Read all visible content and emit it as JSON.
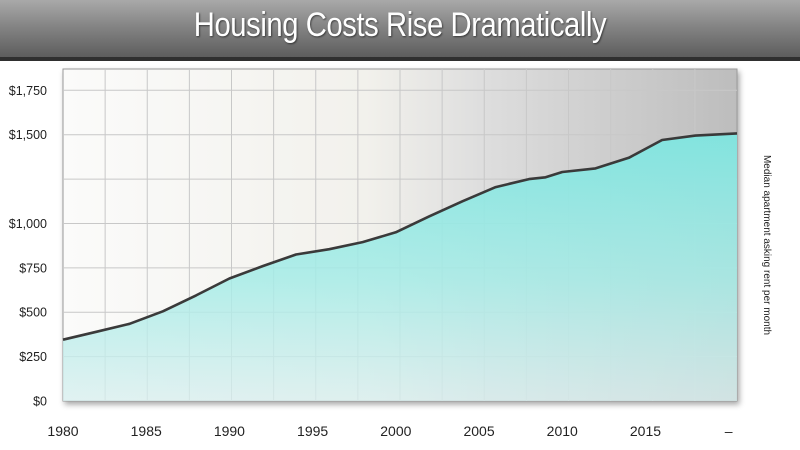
{
  "title": "Housing Costs Rise Dramatically",
  "chart_data": {
    "type": "area",
    "title": "Housing Costs Rise Dramatically",
    "ylabel": "Median apartment asking rent per month",
    "xlabel": "",
    "x": [
      1980,
      1982,
      1984,
      1986,
      1988,
      1990,
      1992,
      1994,
      1996,
      1998,
      2000,
      2002,
      2004,
      2006,
      2008,
      2009,
      2010,
      2012,
      2014,
      2015,
      2016,
      2018
    ],
    "values": [
      345,
      390,
      435,
      505,
      595,
      690,
      760,
      825,
      855,
      895,
      950,
      1040,
      1125,
      1205,
      1250,
      1260,
      1290,
      1310,
      1370,
      1420,
      1470,
      1495
    ],
    "xlim": [
      1980,
      2020.5
    ],
    "ylim": [
      0,
      1870
    ],
    "x_ticks": [
      {
        "value": 1980,
        "label": "1980"
      },
      {
        "value": 1985,
        "label": "1985"
      },
      {
        "value": 1990,
        "label": "1990"
      },
      {
        "value": 1995,
        "label": "1995"
      },
      {
        "value": 2000,
        "label": "2000"
      },
      {
        "value": 2005,
        "label": "2005"
      },
      {
        "value": 2010,
        "label": "2010"
      },
      {
        "value": 2015,
        "label": "2015"
      },
      {
        "value": 2020,
        "label": "–"
      }
    ],
    "y_ticks": [
      {
        "value": 0,
        "label": "$0"
      },
      {
        "value": 250,
        "label": "$250"
      },
      {
        "value": 500,
        "label": "$500"
      },
      {
        "value": 750,
        "label": "$750"
      },
      {
        "value": 1000,
        "label": "$1,000"
      },
      {
        "value": 1500,
        "label": "$1,500"
      },
      {
        "value": 1750,
        "label": "$1,750"
      }
    ],
    "grid": true,
    "legend": "none",
    "colors": {
      "area": "#86e6e2",
      "line": "#3a3a3a",
      "grid": "#c8c8c8"
    }
  }
}
